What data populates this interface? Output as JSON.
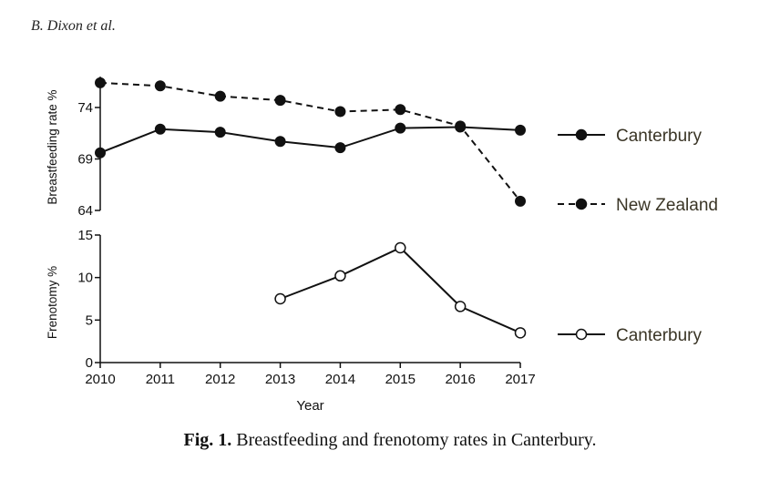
{
  "header": {
    "author": "B. Dixon et al."
  },
  "caption": {
    "label": "Fig. 1.",
    "text": "Breastfeeding and frenotomy rates in Canterbury."
  },
  "chart_data": [
    {
      "type": "line",
      "ylabel": "Breastfeeding rate %",
      "xlabel": "",
      "ylim": [
        64,
        77
      ],
      "yticks": [
        64,
        69,
        74
      ],
      "x": [
        2010,
        2011,
        2012,
        2013,
        2014,
        2015,
        2016,
        2017
      ],
      "series": [
        {
          "name": "Canterbury",
          "style": "solid",
          "marker": "filled-circle",
          "values": [
            69.6,
            71.9,
            71.6,
            70.7,
            70.1,
            72.0,
            72.1,
            71.8
          ]
        },
        {
          "name": "New Zealand",
          "style": "dashed",
          "marker": "filled-circle",
          "values": [
            76.4,
            76.1,
            75.1,
            74.7,
            73.6,
            73.8,
            72.2,
            64.9
          ]
        }
      ],
      "legend": "right"
    },
    {
      "type": "line",
      "ylabel": "Frenotomy %",
      "xlabel": "Year",
      "ylim": [
        0,
        15
      ],
      "yticks": [
        0,
        5,
        10,
        15
      ],
      "x": [
        2010,
        2011,
        2012,
        2013,
        2014,
        2015,
        2016,
        2017
      ],
      "xticks": [
        "2010",
        "2011",
        "2012",
        "2013",
        "2014",
        "2015",
        "2016",
        "2017"
      ],
      "series": [
        {
          "name": "Canterbury",
          "style": "solid",
          "marker": "open-circle",
          "x": [
            2013,
            2014,
            2015,
            2016,
            2017
          ],
          "values": [
            7.5,
            10.2,
            13.5,
            6.6,
            3.5
          ]
        }
      ],
      "legend": "right"
    }
  ]
}
